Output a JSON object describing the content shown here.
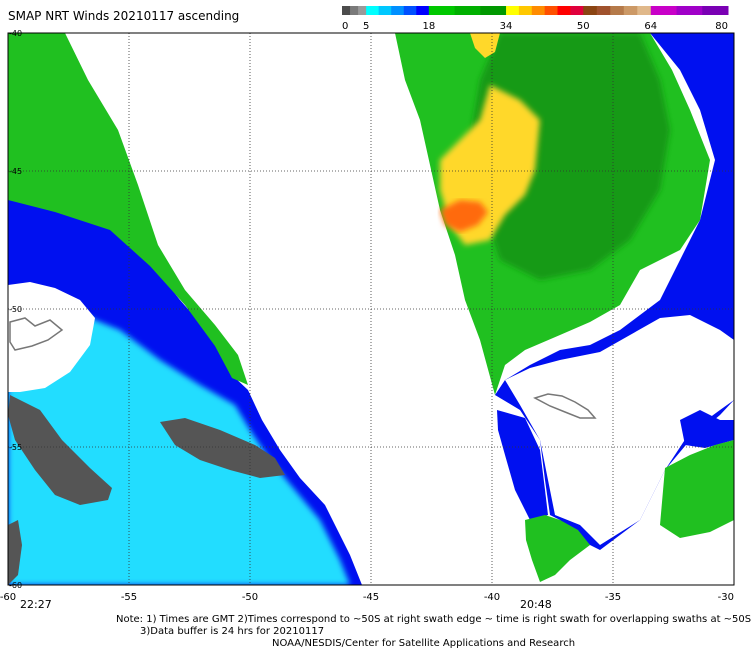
{
  "title": "SMAP NRT Winds 20210117 ascending",
  "color_scale": {
    "tick_labels": [
      "0",
      "5",
      "18",
      "34",
      "50",
      "64",
      "80"
    ],
    "bands": [
      {
        "from": 0,
        "to": 5,
        "colors": [
          "#4c4c4c",
          "#7a7a7a",
          "#9a9a9a"
        ]
      },
      {
        "from": 5,
        "to": 18,
        "colors": [
          "#00ffff",
          "#00c8ff",
          "#0090ff",
          "#0050ff",
          "#0000ff"
        ]
      },
      {
        "from": 18,
        "to": 34,
        "colors": [
          "#00c800",
          "#00b000",
          "#009800"
        ]
      },
      {
        "from": 34,
        "to": 50,
        "colors": [
          "#ffff00",
          "#ffc800",
          "#ff8c00",
          "#ff5000",
          "#ff0000",
          "#e0003c"
        ]
      },
      {
        "from": 50,
        "to": 64,
        "colors": [
          "#8b4513",
          "#a0522d",
          "#b57a4a",
          "#cc9966",
          "#e0b88a"
        ]
      },
      {
        "from": 64,
        "to": 80,
        "colors": [
          "#c800c8",
          "#a000c8",
          "#7a00b4"
        ]
      }
    ]
  },
  "map": {
    "lon_labels": [
      "-60",
      "-55",
      "-50",
      "-45",
      "-40",
      "-35",
      "-30"
    ],
    "lon_values": [
      -60,
      -55,
      -50,
      -45,
      -40,
      -35,
      -30
    ],
    "lat_labels": [
      "-40",
      "-45",
      "-50",
      "-55",
      "-60"
    ],
    "lat_values": [
      -40,
      -45,
      -50,
      -55,
      -60
    ],
    "lon_range": [
      -60,
      -30
    ],
    "lat_range": [
      -60,
      -40
    ],
    "grid": true,
    "swath_times": [
      "22:27",
      "20:48"
    ],
    "colors": {
      "calm": "#555555",
      "light_blue": "#22ddff",
      "blue": "#0a4cff",
      "deep_blue": "#0010f0",
      "green": "#20c020",
      "dark_green": "#169a16",
      "yellow": "#ffd82a",
      "orange": "#ff6a10",
      "land_outline": "#777777"
    }
  },
  "notes": {
    "line1": "Note: 1) Times are GMT 2)Times correspond to ~50S at right swath edge ~ time is right swath for overlapping swaths at ~50S",
    "line2": "3)Data buffer is 24 hrs for 20210117",
    "line3": "NOAA/NESDIS/Center for Satellite Applications and Research"
  }
}
